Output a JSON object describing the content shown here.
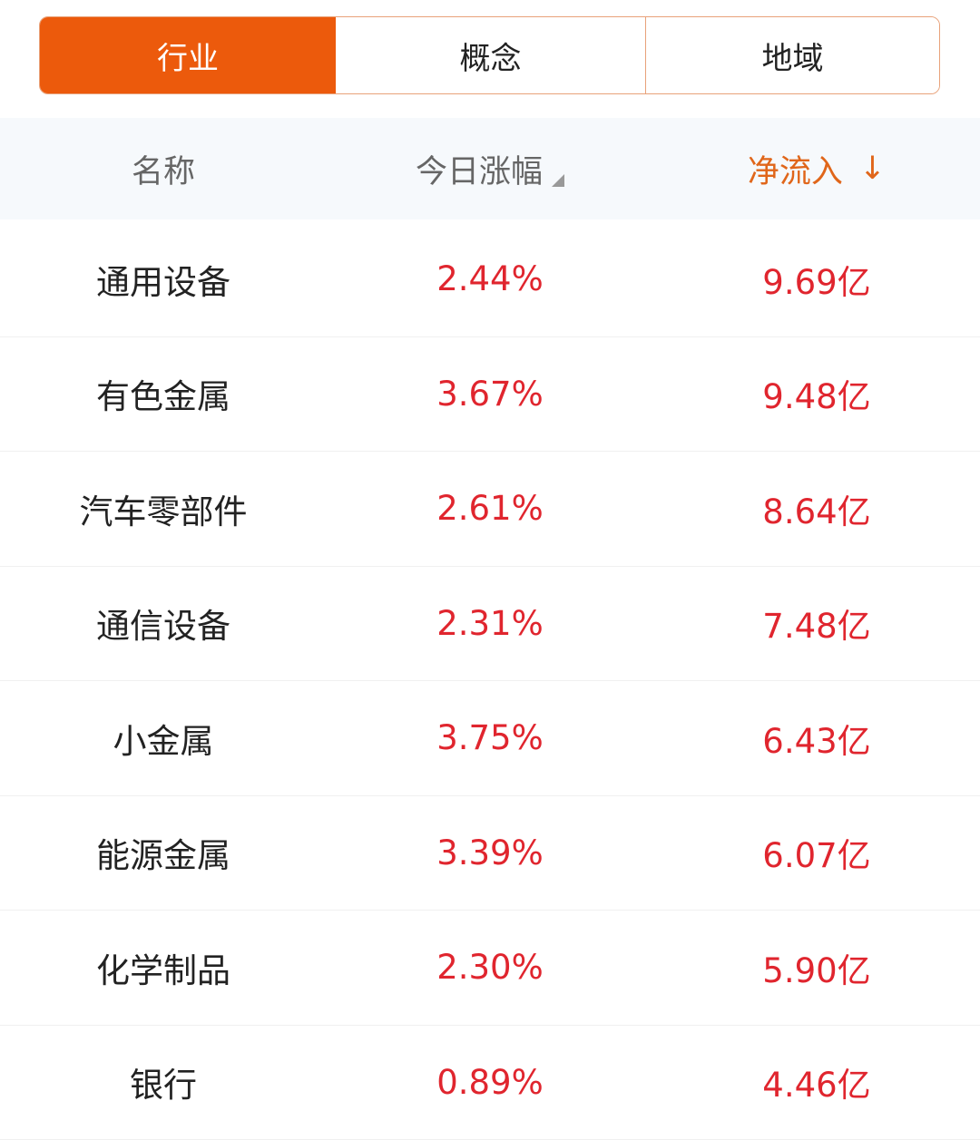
{
  "tabs": [
    {
      "label": "行业",
      "active": true
    },
    {
      "label": "概念",
      "active": false
    },
    {
      "label": "地域",
      "active": false
    }
  ],
  "header": {
    "name": "名称",
    "change": "今日涨幅",
    "inflow": "净流入",
    "inflow_sort": "↓"
  },
  "colors": {
    "accent": "#ec5a0c",
    "up": "#e0252e"
  },
  "rows": [
    {
      "name": "通用设备",
      "change": "2.44%",
      "inflow": "9.69亿"
    },
    {
      "name": "有色金属",
      "change": "3.67%",
      "inflow": "9.48亿"
    },
    {
      "name": "汽车零部件",
      "change": "2.61%",
      "inflow": "8.64亿"
    },
    {
      "name": "通信设备",
      "change": "2.31%",
      "inflow": "7.48亿"
    },
    {
      "name": "小金属",
      "change": "3.75%",
      "inflow": "6.43亿"
    },
    {
      "name": "能源金属",
      "change": "3.39%",
      "inflow": "6.07亿"
    },
    {
      "name": "化学制品",
      "change": "2.30%",
      "inflow": "5.90亿"
    },
    {
      "name": "银行",
      "change": "0.89%",
      "inflow": "4.46亿"
    }
  ]
}
